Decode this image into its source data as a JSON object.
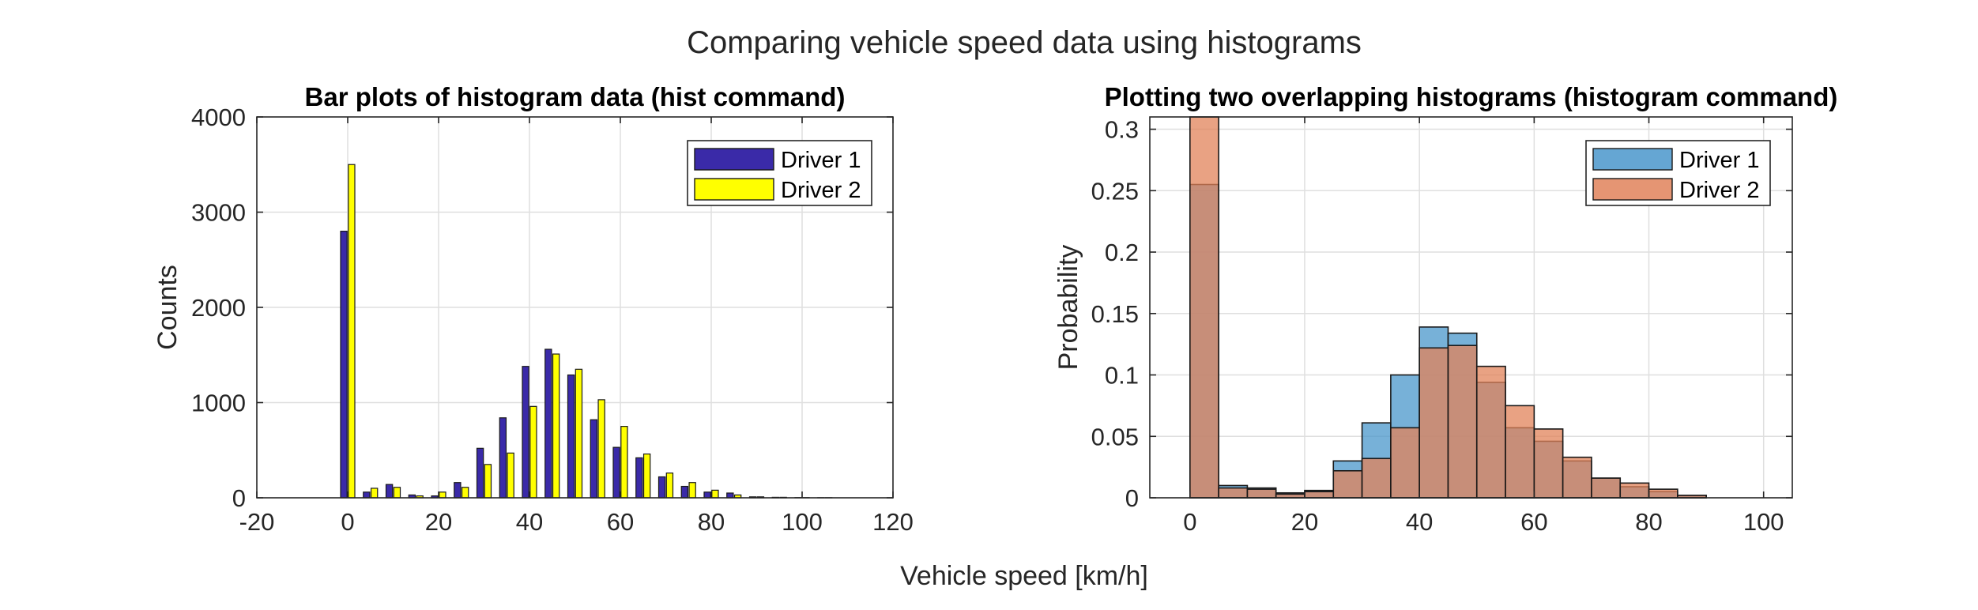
{
  "figure": {
    "suptitle": "Comparing vehicle speed data using histograms",
    "shared_xlabel": "Vehicle speed [km/h]"
  },
  "chart_data": [
    {
      "type": "bar",
      "title": "Bar plots of histogram data (hist command)",
      "xlabel": "",
      "ylabel": "Counts",
      "xlim": [
        -20,
        120
      ],
      "ylim": [
        0,
        4000
      ],
      "xticks": [
        -20,
        0,
        20,
        40,
        60,
        80,
        100,
        120
      ],
      "yticks": [
        0,
        1000,
        2000,
        3000,
        4000
      ],
      "grid": true,
      "legend_position": "top-right",
      "x": [
        0,
        5,
        10,
        15,
        20,
        25,
        30,
        35,
        40,
        45,
        50,
        55,
        60,
        65,
        70,
        75,
        80,
        85,
        90,
        95,
        100,
        105
      ],
      "series": [
        {
          "name": "Driver 1",
          "color": "#3a2aa8",
          "values": [
            2800,
            60,
            140,
            30,
            20,
            160,
            520,
            840,
            1380,
            1560,
            1290,
            820,
            530,
            420,
            220,
            120,
            60,
            50,
            10,
            5,
            2,
            1
          ]
        },
        {
          "name": "Driver 2",
          "color": "#ffff00",
          "values": [
            3500,
            100,
            110,
            20,
            60,
            110,
            350,
            470,
            960,
            1510,
            1350,
            1030,
            750,
            460,
            260,
            160,
            80,
            30,
            10,
            5,
            2,
            1
          ]
        }
      ]
    },
    {
      "type": "bar",
      "title": "Plotting two overlapping histograms (histogram command)",
      "xlabel": "",
      "ylabel": "Probability",
      "xlim": [
        -7,
        105
      ],
      "ylim": [
        0,
        0.31
      ],
      "xticks": [
        0,
        20,
        40,
        60,
        80,
        100
      ],
      "yticks": [
        0,
        0.05,
        0.1,
        0.15,
        0.2,
        0.25,
        0.3
      ],
      "ytick_labels": [
        "0",
        "0.05",
        "0.1",
        "0.15",
        "0.2",
        "0.25",
        "0.3"
      ],
      "grid": true,
      "legend_position": "top-right",
      "bin_edges": [
        0,
        5,
        10,
        15,
        20,
        25,
        30,
        35,
        40,
        45,
        50,
        55,
        60,
        65,
        70,
        75,
        80,
        85,
        90
      ],
      "series": [
        {
          "name": "Driver 1",
          "color": "#4a97cb",
          "values": [
            0.255,
            0.01,
            0.008,
            0.004,
            0.006,
            0.03,
            0.061,
            0.1,
            0.139,
            0.134,
            0.094,
            0.057,
            0.046,
            0.03,
            0.016,
            0.009,
            0.005,
            0.002
          ]
        },
        {
          "name": "Driver 2",
          "color": "#e1835a",
          "values": [
            0.31,
            0.008,
            0.007,
            0.003,
            0.005,
            0.022,
            0.032,
            0.057,
            0.122,
            0.124,
            0.107,
            0.075,
            0.056,
            0.033,
            0.016,
            0.012,
            0.007,
            0.002
          ]
        }
      ]
    }
  ]
}
